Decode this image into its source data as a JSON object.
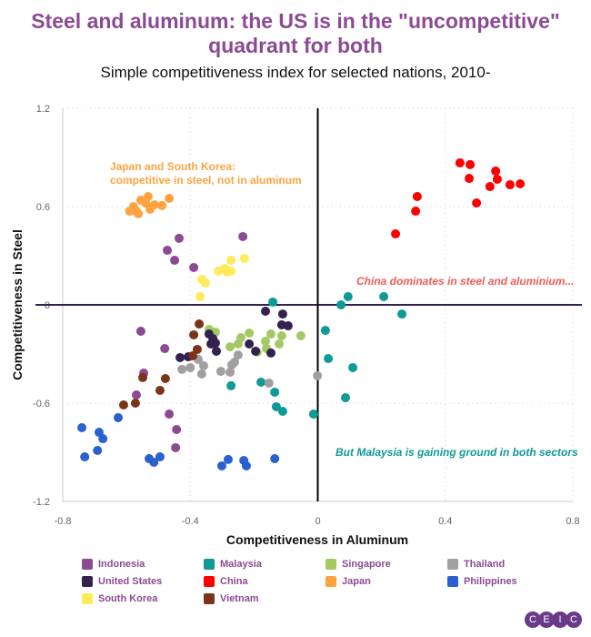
{
  "title": "Steel and aluminum: the US is in the \"uncompetitive\" quadrant for both",
  "title_line1": "Steel and aluminum: the US is in the \"uncompetitive\"",
  "title_line2": "quadrant for both",
  "subtitle": "Simple competitiveness index for selected nations, 2010-",
  "logo": "CEIC",
  "chart_data": {
    "type": "scatter",
    "xlabel": "Competitiveness in Aluminum",
    "ylabel": "Competitiveness in Steel",
    "xlim": [
      -0.8,
      0.8
    ],
    "ylim": [
      -1.2,
      1.2
    ],
    "xticks": [
      "-0.8",
      "-0.4",
      "0",
      "0.4",
      "0.8"
    ],
    "yticks": [
      "1.2",
      "0.6",
      "0",
      "-0.6",
      "-1.2"
    ],
    "grid": "dotted",
    "legend_position": "bottom",
    "annotations": [
      {
        "text_line1": "Japan and South Korea:",
        "text_line2": "competitive in steel, not in aluminum",
        "color": "#FFA340"
      },
      {
        "text": "China dominates in steel and aluminium...",
        "color": "#F05A5A"
      },
      {
        "text": "But Malaysia is gaining ground in both sectors",
        "color": "#0E9A96"
      }
    ],
    "series": [
      {
        "name": "Indonesia",
        "color": "#8B4A93",
        "points": [
          [
            -0.435,
            0.406
          ],
          [
            -0.472,
            0.333
          ],
          [
            -0.449,
            0.272
          ],
          [
            -0.389,
            0.228
          ],
          [
            -0.235,
            0.417
          ],
          [
            -0.555,
            -0.161
          ],
          [
            -0.48,
            -0.267
          ],
          [
            -0.546,
            -0.417
          ],
          [
            -0.569,
            -0.55
          ],
          [
            -0.466,
            -0.667
          ],
          [
            -0.443,
            -0.761
          ],
          [
            -0.446,
            -0.872
          ]
        ]
      },
      {
        "name": "Malaysia",
        "color": "#0E9A96",
        "points": [
          [
            -0.141,
            0.017
          ],
          [
            0.073,
            0
          ],
          [
            0.095,
            0.05
          ],
          [
            0.207,
            0.05
          ],
          [
            0.264,
            -0.056
          ],
          [
            0.024,
            -0.156
          ],
          [
            0.033,
            -0.328
          ],
          [
            0.11,
            -0.383
          ],
          [
            0.087,
            -0.567
          ],
          [
            -0.013,
            -0.667
          ],
          [
            -0.272,
            -0.494
          ],
          [
            -0.178,
            -0.472
          ],
          [
            -0.135,
            -0.533
          ],
          [
            -0.13,
            -0.622
          ],
          [
            -0.11,
            -0.65
          ]
        ]
      },
      {
        "name": "Singapore",
        "color": "#A3C965",
        "points": [
          [
            -0.341,
            -0.15
          ],
          [
            -0.321,
            -0.167
          ],
          [
            -0.275,
            -0.256
          ],
          [
            -0.25,
            -0.239
          ],
          [
            -0.241,
            -0.2
          ],
          [
            -0.215,
            -0.172
          ],
          [
            -0.19,
            -0.289
          ],
          [
            -0.164,
            -0.222
          ],
          [
            -0.161,
            -0.267
          ],
          [
            -0.147,
            -0.178
          ],
          [
            -0.121,
            -0.239
          ],
          [
            -0.113,
            -0.189
          ],
          [
            -0.053,
            -0.189
          ]
        ]
      },
      {
        "name": "Thailand",
        "color": "#A0A0A0",
        "points": [
          [
            -0.375,
            -0.333
          ],
          [
            -0.358,
            -0.372
          ],
          [
            -0.364,
            -0.422
          ],
          [
            -0.426,
            -0.394
          ],
          [
            -0.4,
            -0.383
          ],
          [
            -0.304,
            -0.406
          ],
          [
            -0.275,
            -0.411
          ],
          [
            -0.27,
            -0.367
          ],
          [
            -0.25,
            -0.306
          ],
          [
            -0.261,
            -0.35
          ],
          [
            -0.153,
            -0.478
          ],
          [
            -0.001,
            -0.433
          ]
        ]
      },
      {
        "name": "United States",
        "color": "#33224D",
        "points": [
          [
            -0.164,
            -0.039
          ],
          [
            -0.11,
            -0.056
          ],
          [
            -0.113,
            -0.122
          ],
          [
            -0.093,
            -0.128
          ],
          [
            -0.341,
            -0.178
          ],
          [
            -0.329,
            -0.206
          ],
          [
            -0.335,
            -0.239
          ],
          [
            -0.321,
            -0.233
          ],
          [
            -0.318,
            -0.283
          ],
          [
            -0.215,
            -0.239
          ],
          [
            -0.195,
            -0.283
          ],
          [
            -0.147,
            -0.294
          ],
          [
            -0.432,
            -0.322
          ],
          [
            -0.406,
            -0.317
          ]
        ]
      },
      {
        "name": "China",
        "color": "#FF0000",
        "points": [
          [
            0.446,
            0.867
          ],
          [
            0.478,
            0.856
          ],
          [
            0.475,
            0.772
          ],
          [
            0.558,
            0.817
          ],
          [
            0.563,
            0.767
          ],
          [
            0.54,
            0.722
          ],
          [
            0.603,
            0.733
          ],
          [
            0.635,
            0.739
          ],
          [
            0.498,
            0.622
          ],
          [
            0.312,
            0.661
          ],
          [
            0.307,
            0.572
          ],
          [
            0.244,
            0.433
          ]
        ]
      },
      {
        "name": "Japan",
        "color": "#FFA340",
        "points": [
          [
            -0.59,
            0.572
          ],
          [
            -0.578,
            0.6
          ],
          [
            -0.563,
            0.556
          ],
          [
            -0.555,
            0.639
          ],
          [
            -0.532,
            0.661
          ],
          [
            -0.54,
            0.622
          ],
          [
            -0.526,
            0.583
          ],
          [
            -0.512,
            0.611
          ],
          [
            -0.489,
            0.606
          ],
          [
            -0.466,
            0.65
          ],
          [
            -0.569,
            0.572
          ]
        ]
      },
      {
        "name": "Philippines",
        "color": "#2A60D0",
        "points": [
          [
            -0.74,
            -0.75
          ],
          [
            -0.686,
            -0.778
          ],
          [
            -0.674,
            -0.817
          ],
          [
            -0.691,
            -0.889
          ],
          [
            -0.731,
            -0.928
          ],
          [
            -0.626,
            -0.689
          ],
          [
            -0.529,
            -0.939
          ],
          [
            -0.514,
            -0.961
          ],
          [
            -0.495,
            -0.928
          ],
          [
            -0.301,
            -0.983
          ],
          [
            -0.281,
            -0.944
          ],
          [
            -0.232,
            -0.95
          ],
          [
            -0.224,
            -0.983
          ],
          [
            -0.135,
            -0.939
          ]
        ]
      },
      {
        "name": "South Korea",
        "color": "#FFEB5A",
        "points": [
          [
            -0.364,
            0.156
          ],
          [
            -0.352,
            0.133
          ],
          [
            -0.369,
            0.05
          ],
          [
            -0.312,
            0.206
          ],
          [
            -0.292,
            0.222
          ],
          [
            -0.284,
            0.2
          ],
          [
            -0.272,
            0.206
          ],
          [
            -0.272,
            0.272
          ],
          [
            -0.23,
            0.283
          ]
        ]
      },
      {
        "name": "Vietnam",
        "color": "#7A3518",
        "points": [
          [
            -0.372,
            -0.117
          ],
          [
            -0.389,
            -0.183
          ],
          [
            -0.378,
            -0.272
          ],
          [
            -0.392,
            -0.311
          ],
          [
            -0.549,
            -0.444
          ],
          [
            -0.478,
            -0.45
          ],
          [
            -0.495,
            -0.522
          ],
          [
            -0.572,
            -0.6
          ],
          [
            -0.609,
            -0.611
          ]
        ]
      }
    ]
  }
}
